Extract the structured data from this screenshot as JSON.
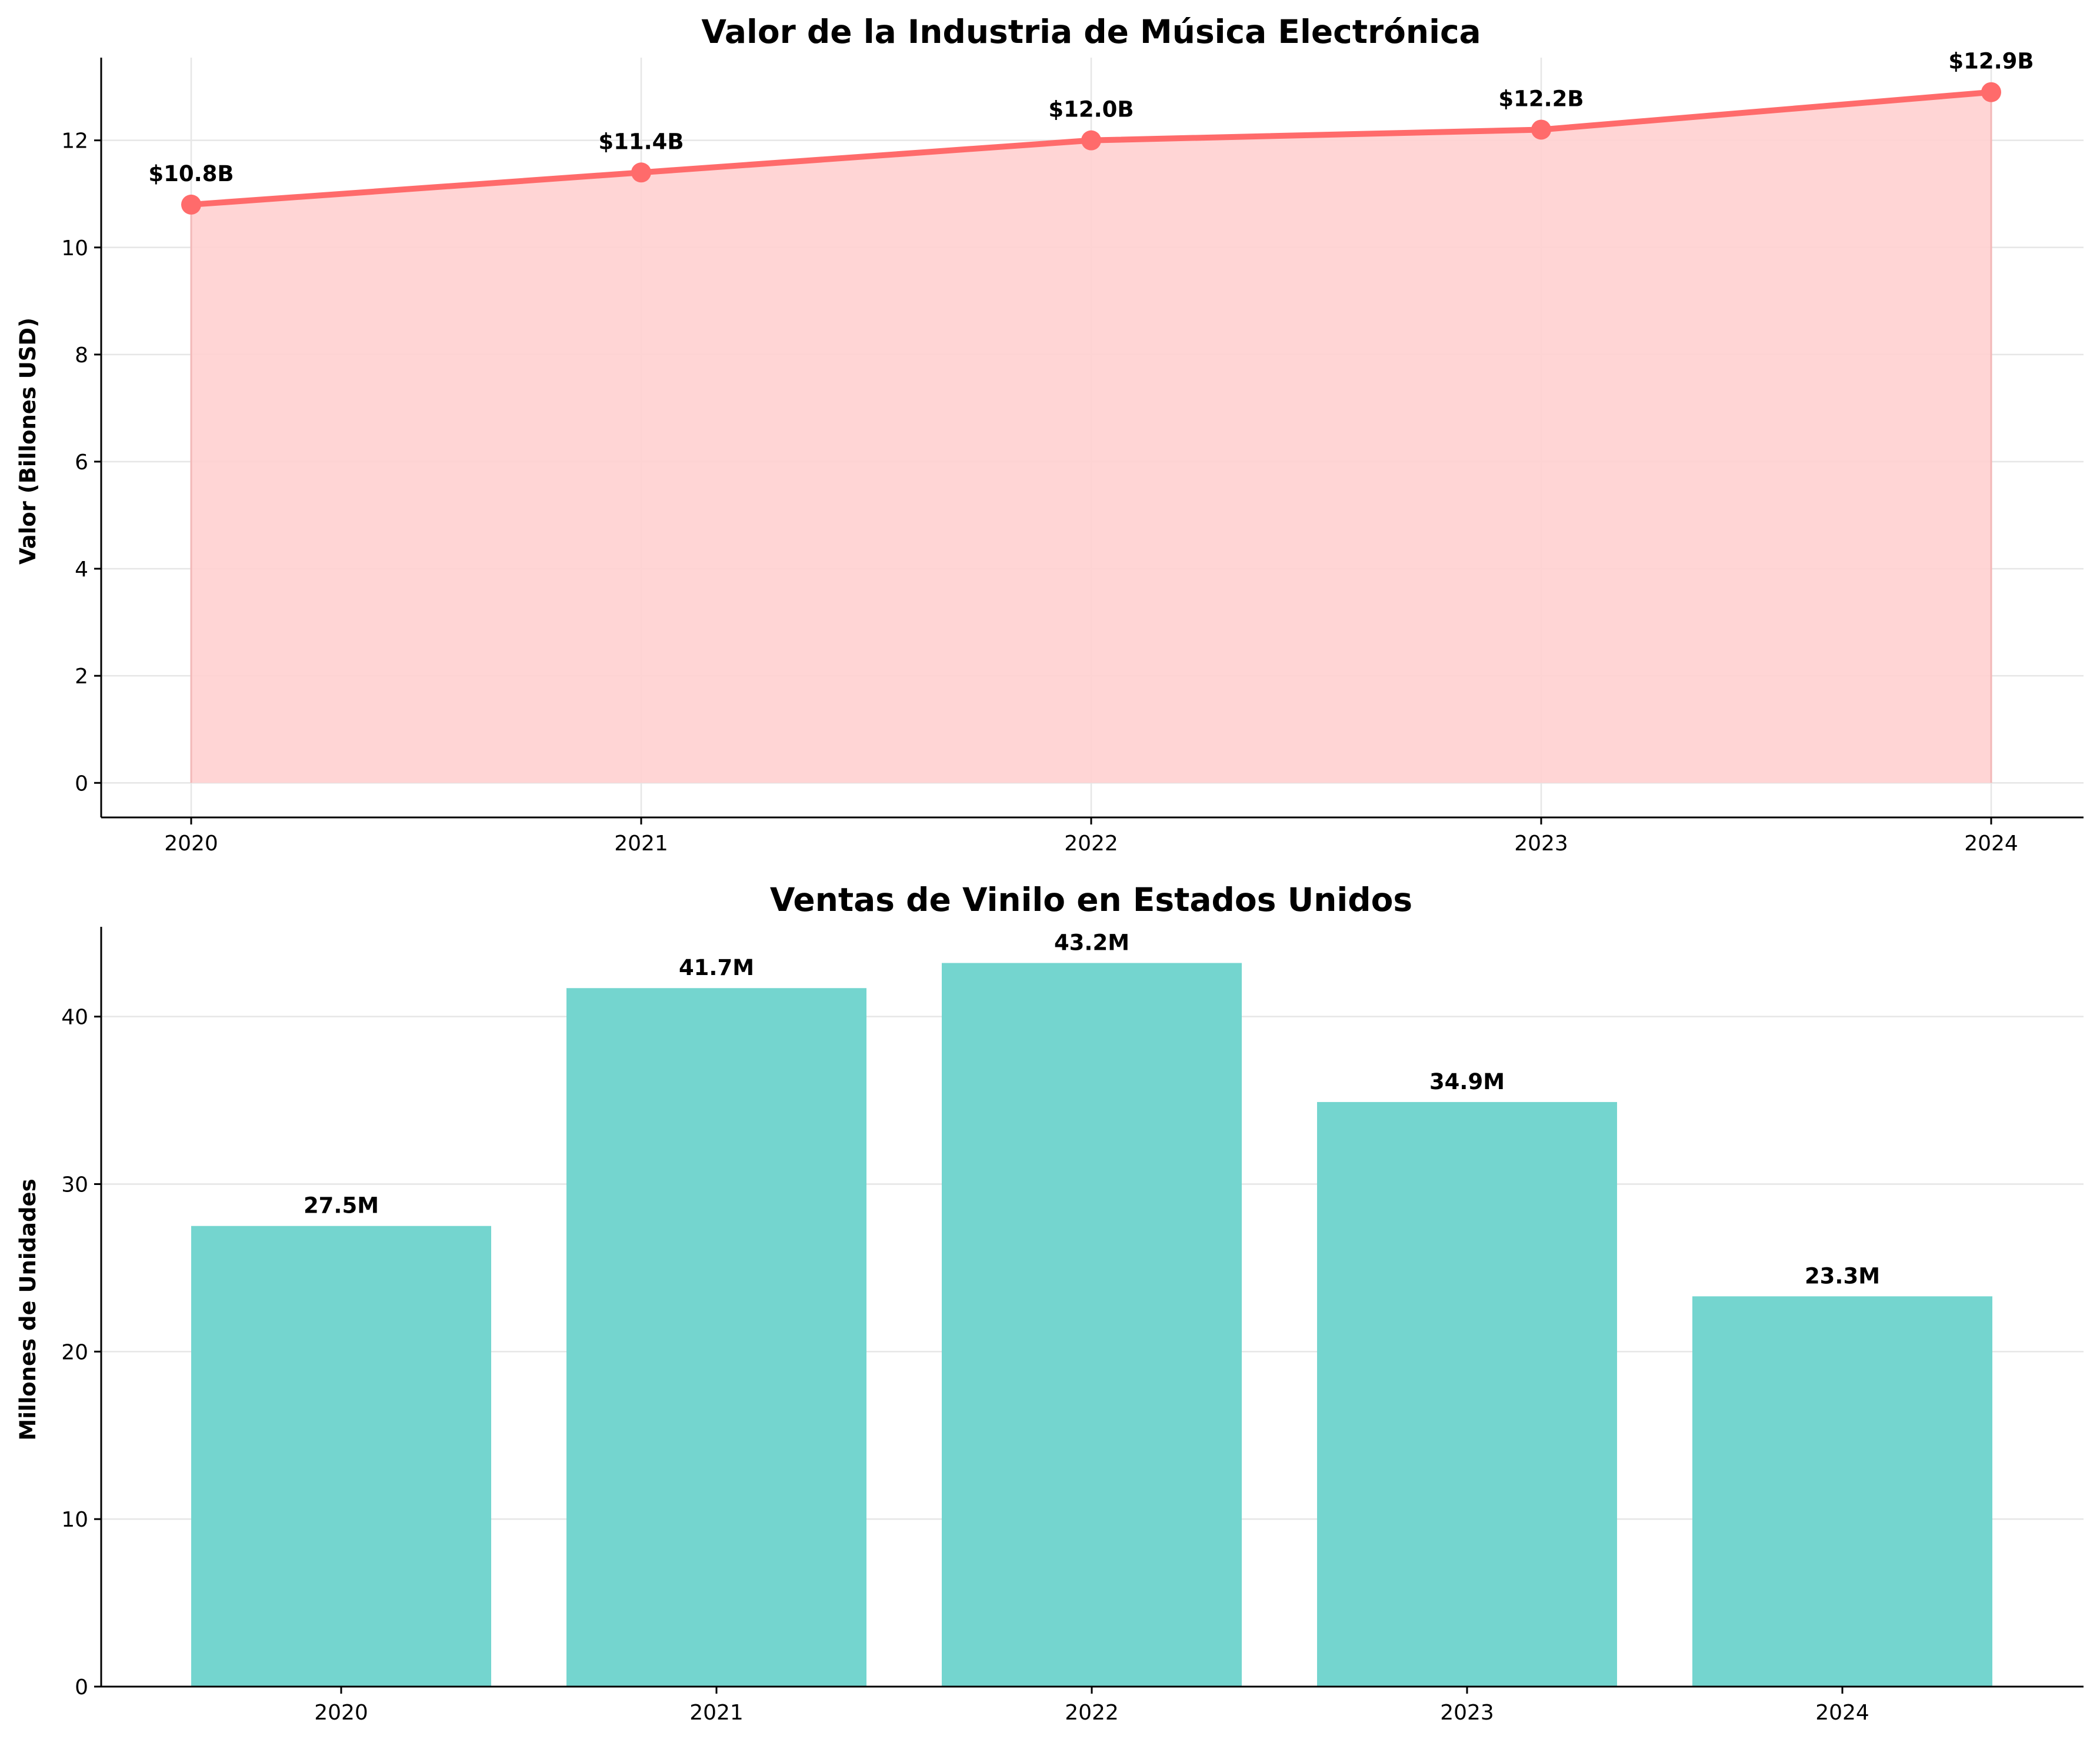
{
  "chart_data": [
    {
      "type": "area",
      "title": "Valor de la Industria de Música Electrónica",
      "xlabel": "",
      "ylabel": "Valor (Billones USD)",
      "categories": [
        "2020",
        "2021",
        "2022",
        "2023",
        "2024"
      ],
      "values": [
        10.8,
        11.4,
        12.0,
        12.2,
        12.9
      ],
      "data_labels": [
        "$10.8B",
        "$11.4B",
        "$12.0B",
        "$12.2B",
        "$12.9B"
      ],
      "ylim": [
        -0.645,
        13.545
      ],
      "yticks": [
        0,
        2,
        4,
        6,
        8,
        10,
        12
      ],
      "grid": true,
      "colors": {
        "line": "#ff6b6b",
        "fill": "#ffd0d0"
      }
    },
    {
      "type": "bar",
      "title": "Ventas de Vinilo en Estados Unidos",
      "xlabel": "",
      "ylabel": "Millones de Unidades",
      "categories": [
        "2020",
        "2021",
        "2022",
        "2023",
        "2024"
      ],
      "values": [
        27.5,
        41.7,
        43.2,
        34.9,
        23.3
      ],
      "data_labels": [
        "27.5M",
        "41.7M",
        "43.2M",
        "34.9M",
        "23.3M"
      ],
      "ylim": [
        0,
        45.36
      ],
      "yticks": [
        0,
        10,
        20,
        30,
        40
      ],
      "grid": true,
      "colors": {
        "bar": "#74d5cf"
      }
    }
  ]
}
